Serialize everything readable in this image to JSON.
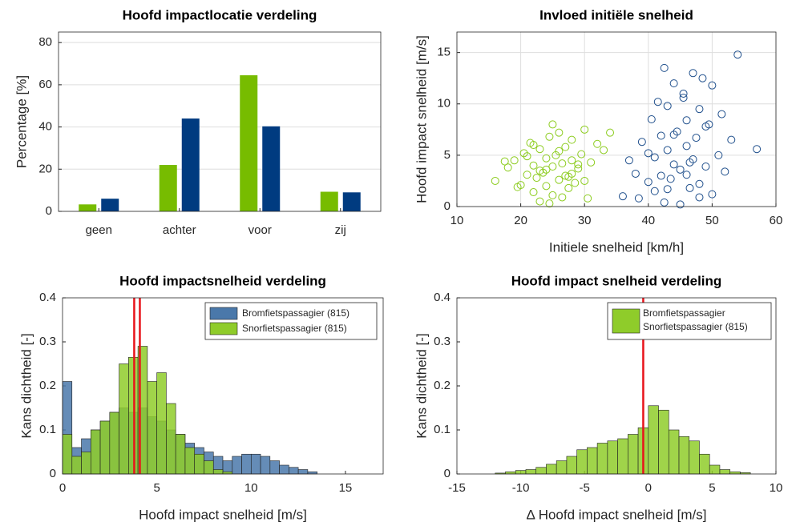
{
  "chart_data": [
    {
      "type": "bar",
      "title": "Hoofd impactlocatie verdeling",
      "ylabel": "Percentage [%]",
      "categories": [
        "geen",
        "achter",
        "voor",
        "zij"
      ],
      "series": [
        {
          "color": "#77bc00",
          "values": [
            3.3,
            22,
            64.5,
            9.3
          ]
        },
        {
          "color": "#003b80",
          "values": [
            6,
            44,
            40.3,
            9
          ]
        }
      ],
      "ylim": [
        0,
        85
      ],
      "yticks": [
        0,
        20,
        40,
        60,
        80
      ],
      "grid": true
    },
    {
      "type": "scatter",
      "title": "Invloed initiële snelheid",
      "xlabel": "Initiele snelheid [km/h]",
      "ylabel": "Hoofd impact snelheid [m/s]",
      "series": [
        {
          "color": "#8ccc1e",
          "x": [
            16,
            18,
            19,
            20,
            20.5,
            21,
            21.5,
            22,
            22,
            22.5,
            23,
            23,
            23.5,
            24,
            24,
            24.5,
            25,
            25,
            25.5,
            26,
            26,
            26.5,
            27,
            27,
            27.5,
            28,
            28,
            28.5,
            29,
            29.5,
            30,
            30.5,
            31,
            32,
            33,
            34,
            19.5,
            21,
            23,
            24.5,
            26,
            27.5,
            29,
            25,
            22,
            24,
            26.5,
            28,
            30,
            17.5
          ],
          "values": [
            2.5,
            3.8,
            4.5,
            2.1,
            5.2,
            3.1,
            6.2,
            1.4,
            4.0,
            2.8,
            5.6,
            0.5,
            3.3,
            4.7,
            2.0,
            6.8,
            3.9,
            1.1,
            5.0,
            2.6,
            7.2,
            4.2,
            3.0,
            5.8,
            1.8,
            4.5,
            6.5,
            2.3,
            3.7,
            5.1,
            7.5,
            0.8,
            4.3,
            6.1,
            5.5,
            7.2,
            1.9,
            4.9,
            3.5,
            0.3,
            5.4,
            2.9,
            4.1,
            8.0,
            6.0,
            3.6,
            0.9,
            3.2,
            2.5,
            4.4
          ]
        },
        {
          "color": "#1f4f8c",
          "x": [
            36,
            37,
            38,
            38.5,
            39,
            40,
            40.5,
            41,
            41,
            41.5,
            42,
            42,
            42.5,
            43,
            43,
            43.5,
            44,
            44,
            44.5,
            45,
            45,
            45.5,
            46,
            46,
            46.5,
            47,
            47,
            47.5,
            48,
            48,
            48.5,
            49,
            49,
            50,
            50,
            51,
            51.5,
            52,
            53,
            54,
            57,
            40,
            42.5,
            44,
            45.5,
            46.5,
            48,
            49.5,
            43,
            46
          ],
          "values": [
            1.0,
            4.5,
            3.2,
            0.8,
            6.3,
            2.4,
            8.5,
            1.5,
            4.8,
            10.2,
            3.0,
            6.9,
            0.4,
            5.5,
            9.8,
            2.7,
            4.1,
            12.0,
            7.3,
            3.6,
            0.2,
            11.0,
            5.9,
            8.4,
            1.8,
            4.6,
            13.0,
            6.7,
            2.2,
            9.5,
            12.5,
            3.9,
            7.8,
            1.2,
            11.8,
            5.0,
            9.0,
            3.4,
            6.5,
            14.8,
            5.6,
            5.2,
            13.5,
            7.0,
            10.6,
            4.3,
            0.9,
            8.0,
            1.7,
            3.1
          ]
        }
      ],
      "xlim": [
        10,
        60
      ],
      "xticks": [
        10,
        20,
        30,
        40,
        50,
        60
      ],
      "ylim": [
        0,
        17
      ],
      "yticks": [
        0,
        5,
        10,
        15
      ],
      "grid": true
    },
    {
      "type": "histogram",
      "title": "Hoofd impactsnelheid verdeling",
      "xlabel": "Hoofd impact snelheid [m/s]",
      "ylabel": "Kans dichtheid [-]",
      "bins": [
        0,
        0.5,
        1,
        1.5,
        2,
        2.5,
        3,
        3.5,
        4,
        4.5,
        5,
        5.5,
        6,
        6.5,
        7,
        7.5,
        8,
        8.5,
        9,
        9.5,
        10,
        10.5,
        11,
        11.5,
        12,
        12.5,
        13,
        13.5
      ],
      "series": [
        {
          "name": "Bromfietspassagier (815)",
          "color": "#4a78aa",
          "values": [
            0.21,
            0.06,
            0.08,
            0.1,
            0.12,
            0.14,
            0.15,
            0.14,
            0.15,
            0.13,
            0.12,
            0.1,
            0.09,
            0.07,
            0.06,
            0.05,
            0.04,
            0.03,
            0.04,
            0.045,
            0.045,
            0.04,
            0.03,
            0.02,
            0.015,
            0.01,
            0.005
          ]
        },
        {
          "name": "Snorfietspassagier (815)",
          "color": "#8fcc2a",
          "values": [
            0.09,
            0.04,
            0.05,
            0.1,
            0.12,
            0.14,
            0.25,
            0.265,
            0.29,
            0.21,
            0.23,
            0.16,
            0.09,
            0.06,
            0.045,
            0.03,
            0.01,
            0.005,
            0,
            0,
            0,
            0,
            0,
            0,
            0,
            0,
            0
          ]
        }
      ],
      "vlines": [
        3.8,
        4.1
      ],
      "vline_color": "#e8141b",
      "xlim": [
        0,
        17
      ],
      "xticks": [
        0,
        5,
        10,
        15
      ],
      "ylim": [
        0,
        0.4
      ],
      "yticks": [
        0,
        0.1,
        0.2,
        0.3,
        0.4
      ],
      "grid": false
    },
    {
      "type": "histogram",
      "title": "Hoofd impact snelheid verdeling",
      "xlabel": "Δ Hoofd impact snelheid [m/s]",
      "ylabel": "Kans dichtheid [-]",
      "bins": [
        -12,
        -11.2,
        -10.4,
        -9.6,
        -8.8,
        -8,
        -7.2,
        -6.4,
        -5.6,
        -4.8,
        -4,
        -3.2,
        -2.4,
        -1.6,
        -0.8,
        0,
        0.8,
        1.6,
        2.4,
        3.2,
        4,
        4.8,
        5.6,
        6.4,
        7.2,
        8
      ],
      "series": [
        {
          "color": "#8fcc2a",
          "values": [
            0.002,
            0.005,
            0.008,
            0.01,
            0.015,
            0.022,
            0.03,
            0.04,
            0.055,
            0.06,
            0.07,
            0.075,
            0.08,
            0.09,
            0.105,
            0.155,
            0.145,
            0.1,
            0.085,
            0.075,
            0.045,
            0.02,
            0.01,
            0.005,
            0.003
          ]
        }
      ],
      "legend_lines": [
        "Bromfietspassagier",
        "Snorfietspassagier (815)"
      ],
      "vlines": [
        -0.4
      ],
      "vline_color": "#e8141b",
      "xlim": [
        -15,
        10
      ],
      "xticks": [
        -15,
        -10,
        -5,
        0,
        5,
        10
      ],
      "ylim": [
        0,
        0.4
      ],
      "yticks": [
        0,
        0.1,
        0.2,
        0.3,
        0.4
      ],
      "grid": false
    }
  ]
}
